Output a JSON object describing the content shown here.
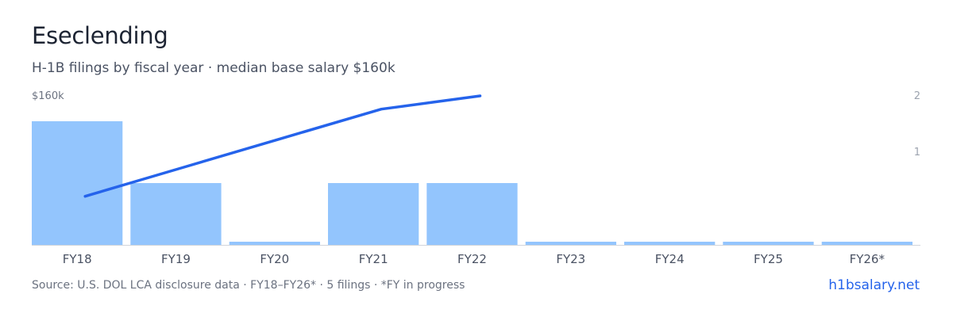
{
  "header": {
    "title": "Eseclending",
    "subtitle": "H-1B filings by fiscal year · median base salary $160k"
  },
  "footer": {
    "source": "Source: U.S. DOL LCA disclosure data · FY18–FY26* · 5 filings · *FY in progress",
    "brand": "h1bsalary.net"
  },
  "chart_data": {
    "type": "bar",
    "categories": [
      "FY18",
      "FY19",
      "FY20",
      "FY21",
      "FY22",
      "FY23",
      "FY24",
      "FY25",
      "FY26*"
    ],
    "series": [
      {
        "type": "bar",
        "axis": "right",
        "values": [
          2,
          1,
          0,
          1,
          1,
          0,
          0,
          0,
          0
        ]
      },
      {
        "type": "line",
        "axis": "left",
        "values": [
          127000,
          138000,
          149000,
          160000,
          165000,
          null,
          null,
          null,
          null
        ]
      }
    ],
    "left_axis_label": "$160k",
    "right_ticks": [
      "2",
      "1"
    ],
    "right_ylim": [
      0,
      2.3
    ],
    "grid": false,
    "colors": {
      "bar": "#93c5fd",
      "line": "#2563eb",
      "baseline": "#d1d5db"
    }
  }
}
